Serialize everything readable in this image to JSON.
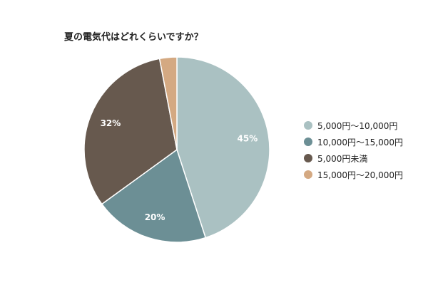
{
  "chart_data": {
    "type": "pie",
    "title": "夏の電気代はどれくらいですか？",
    "slices": [
      {
        "label": "5,000円～10,000円",
        "value": 45,
        "display": "45%",
        "color": "#aac1c2"
      },
      {
        "label": "10,000円～15,000円",
        "value": 20,
        "display": "20%",
        "color": "#6c8f95"
      },
      {
        "label": "5,000円未満",
        "value": 32,
        "display": "32%",
        "color": "#67594e"
      },
      {
        "label": "15,000円～20,000円",
        "value": 3,
        "display": "",
        "color": "#d4a982"
      }
    ],
    "legend_position": "right"
  }
}
